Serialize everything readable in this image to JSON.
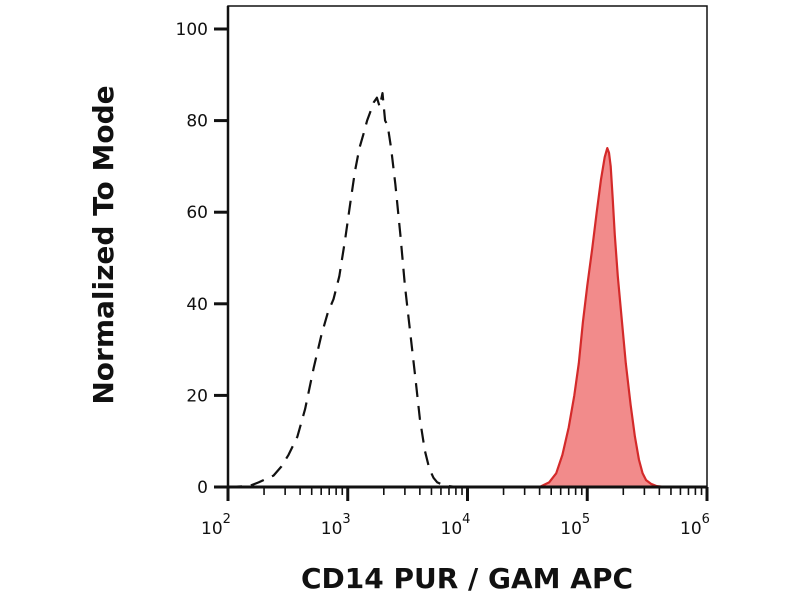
{
  "chart_data": {
    "type": "area",
    "xlabel": "CD14 PUR / GAM APC",
    "ylabel": "Normalized To Mode",
    "x_scale": "log",
    "xlim": [
      100,
      1000000
    ],
    "ylim": [
      0,
      100
    ],
    "x_ticks": [
      {
        "value": 100,
        "base": "10",
        "exp": "2"
      },
      {
        "value": 1000,
        "base": "10",
        "exp": "3"
      },
      {
        "value": 10000,
        "base": "10",
        "exp": "4"
      },
      {
        "value": 100000,
        "base": "10",
        "exp": "5"
      },
      {
        "value": 1000000,
        "base": "10",
        "exp": "6"
      }
    ],
    "y_ticks": [
      {
        "value": 0,
        "label": "0"
      },
      {
        "value": 20,
        "label": "20"
      },
      {
        "value": 40,
        "label": "40"
      },
      {
        "value": 60,
        "label": "60"
      },
      {
        "value": 80,
        "label": "80"
      },
      {
        "value": 100,
        "label": "100"
      }
    ],
    "grid": false,
    "series": [
      {
        "style": "dashed-line",
        "color": "#111111",
        "x": [
          80,
          150,
          180,
          240,
          280,
          320,
          380,
          440,
          520,
          600,
          680,
          760,
          850,
          950,
          1050,
          1150,
          1250,
          1350,
          1450,
          1550,
          1650,
          1750,
          1850,
          1950,
          2050,
          2150,
          2300,
          2500,
          2750,
          3000,
          3350,
          3700,
          4000,
          4400,
          4800,
          5200,
          5600,
          6200,
          7000,
          8000,
          10000,
          20000,
          40000
        ],
        "y": [
          0,
          0.2,
          1,
          2.5,
          4.5,
          7,
          11,
          17,
          26,
          33,
          38,
          41,
          46,
          54,
          62,
          69,
          74,
          77,
          80,
          82,
          84,
          85,
          83,
          86,
          80,
          79,
          74,
          66,
          55,
          44,
          33,
          23,
          15,
          8,
          4,
          2,
          1,
          0.5,
          0.2,
          0,
          0,
          0,
          0
        ]
      },
      {
        "style": "filled",
        "color": "#d42a2a",
        "fill": "#f28b8b",
        "x": [
          40000,
          48000,
          55000,
          62000,
          70000,
          78000,
          85000,
          92000,
          100000,
          110000,
          120000,
          130000,
          140000,
          147000,
          152000,
          157000,
          163000,
          170000,
          180000,
          195000,
          210000,
          230000,
          250000,
          270000,
          290000,
          310000,
          340000,
          380000,
          450000
        ],
        "y": [
          0,
          1,
          3,
          7,
          13,
          20,
          27,
          36,
          44,
          52,
          60,
          67,
          72,
          74,
          73,
          70,
          63,
          55,
          46,
          36,
          27,
          18,
          11,
          6,
          3,
          1.5,
          0.7,
          0.2,
          0
        ]
      }
    ]
  }
}
